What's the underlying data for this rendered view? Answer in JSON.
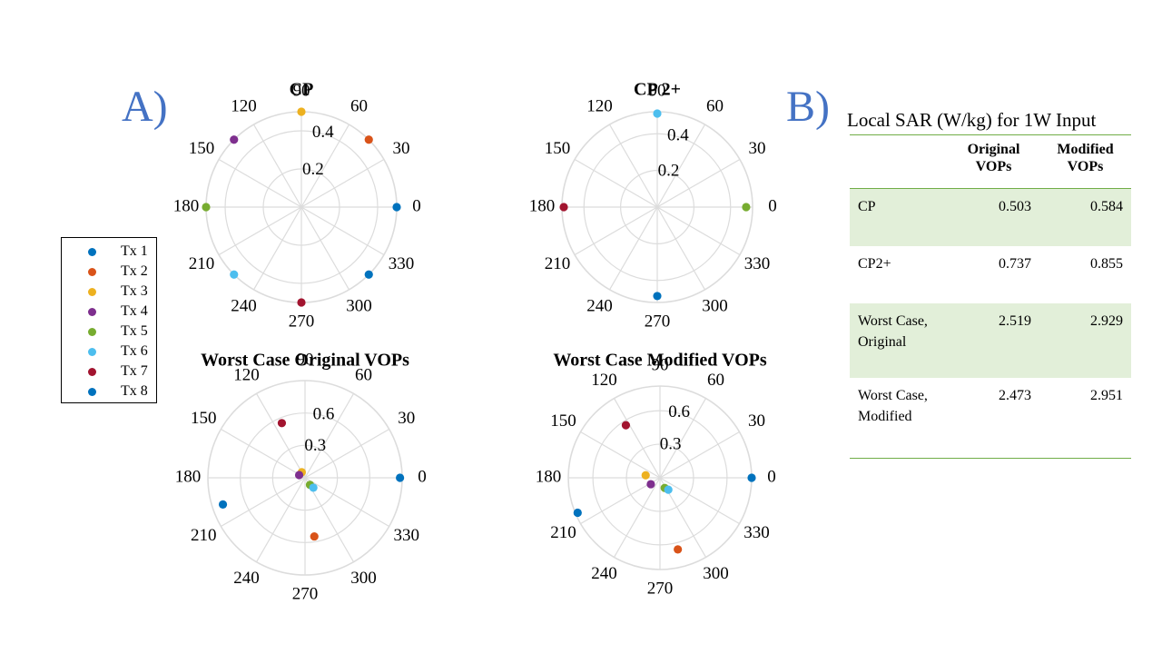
{
  "panel_labels": {
    "a": "A)",
    "b": "B)"
  },
  "colors": {
    "tx1": "#0072bd",
    "tx2": "#d95319",
    "tx3": "#edb120",
    "tx4": "#7e2f8e",
    "tx5": "#77ac30",
    "tx6": "#4dbeee",
    "tx7": "#a2142f",
    "tx8": "#0072bd",
    "grid": "#dcdcdc",
    "table_rule": "#70ad47",
    "table_shade": "#e2efd9",
    "label": "#4472c4"
  },
  "legend": {
    "items": [
      {
        "label": "Tx 1",
        "color": "#0072bd"
      },
      {
        "label": "Tx 2",
        "color": "#d95319"
      },
      {
        "label": "Tx 3",
        "color": "#edb120"
      },
      {
        "label": "Tx 4",
        "color": "#7e2f8e"
      },
      {
        "label": "Tx 5",
        "color": "#77ac30"
      },
      {
        "label": "Tx 6",
        "color": "#4dbeee"
      },
      {
        "label": "Tx 7",
        "color": "#a2142f"
      },
      {
        "label": "Tx 8",
        "color": "#0072bd"
      }
    ]
  },
  "chart_data": [
    {
      "type": "scatter",
      "subtype": "polar",
      "title": "CP",
      "rlim": [
        0,
        0.5
      ],
      "rticks": [
        "0.2",
        "0.4"
      ],
      "theta_ticks": [
        "0",
        "30",
        "60",
        "90",
        "120",
        "150",
        "180",
        "210",
        "240",
        "270",
        "300",
        "330"
      ],
      "points": [
        {
          "series": "Tx 1",
          "theta": 0,
          "r": 0.5
        },
        {
          "series": "Tx 2",
          "theta": 45,
          "r": 0.5
        },
        {
          "series": "Tx 3",
          "theta": 90,
          "r": 0.5
        },
        {
          "series": "Tx 4",
          "theta": 135,
          "r": 0.5
        },
        {
          "series": "Tx 5",
          "theta": 180,
          "r": 0.5
        },
        {
          "series": "Tx 6",
          "theta": 225,
          "r": 0.5
        },
        {
          "series": "Tx 7",
          "theta": 270,
          "r": 0.5
        },
        {
          "series": "Tx 8",
          "theta": 315,
          "r": 0.5
        }
      ]
    },
    {
      "type": "scatter",
      "subtype": "polar",
      "title": "CP 2+",
      "rlim": [
        0,
        0.52
      ],
      "rticks": [
        "0.2",
        "0.4"
      ],
      "theta_ticks": [
        "0",
        "30",
        "60",
        "90",
        "120",
        "150",
        "180",
        "210",
        "240",
        "270",
        "300",
        "330"
      ],
      "points": [
        {
          "series": "Tx 5",
          "theta": 0,
          "r": 0.485
        },
        {
          "series": "Tx 6",
          "theta": 90,
          "r": 0.51
        },
        {
          "series": "Tx 7",
          "theta": 180,
          "r": 0.51
        },
        {
          "series": "Tx 1",
          "theta": 270,
          "r": 0.485
        }
      ]
    },
    {
      "type": "scatter",
      "subtype": "polar",
      "title": "Worst Case Original VOPs",
      "rlim": [
        0,
        0.9
      ],
      "rticks": [
        "0.3",
        "0.6"
      ],
      "theta_ticks": [
        "0",
        "30",
        "60",
        "90",
        "120",
        "150",
        "180",
        "210",
        "240",
        "270",
        "300",
        "330"
      ],
      "points": [
        {
          "series": "Tx 1",
          "theta": 0,
          "r": 0.88
        },
        {
          "series": "Tx 2",
          "theta": 279,
          "r": 0.55
        },
        {
          "series": "Tx 3",
          "theta": 120,
          "r": 0.06
        },
        {
          "series": "Tx 4",
          "theta": 155,
          "r": 0.06
        },
        {
          "series": "Tx 5",
          "theta": 305,
          "r": 0.08
        },
        {
          "series": "Tx 6",
          "theta": 310,
          "r": 0.12
        },
        {
          "series": "Tx 7",
          "theta": 113,
          "r": 0.55
        },
        {
          "series": "Tx 8",
          "theta": 198,
          "r": 0.8
        }
      ]
    },
    {
      "type": "scatter",
      "subtype": "polar",
      "title": "Worst Case Modified VOPs",
      "rlim": [
        0,
        0.82
      ],
      "rticks": [
        "0.3",
        "0.6"
      ],
      "theta_ticks": [
        "0",
        "30",
        "60",
        "90",
        "120",
        "150",
        "180",
        "210",
        "240",
        "270",
        "300",
        "330"
      ],
      "points": [
        {
          "series": "Tx 1",
          "theta": 0,
          "r": 0.82
        },
        {
          "series": "Tx 2",
          "theta": 284,
          "r": 0.66
        },
        {
          "series": "Tx 3",
          "theta": 170,
          "r": 0.13
        },
        {
          "series": "Tx 4",
          "theta": 215,
          "r": 0.1
        },
        {
          "series": "Tx 5",
          "theta": 295,
          "r": 0.1
        },
        {
          "series": "Tx 6",
          "theta": 305,
          "r": 0.13
        },
        {
          "series": "Tx 7",
          "theta": 123,
          "r": 0.56
        },
        {
          "series": "Tx 8",
          "theta": 203,
          "r": 0.8
        }
      ]
    },
    {
      "type": "table",
      "title": "Local SAR (W/kg) for 1W Input",
      "columns": [
        "",
        "Original VOPs",
        "Modified VOPs"
      ],
      "rows": [
        {
          "label": "CP",
          "original": "0.503",
          "modified": "0.584"
        },
        {
          "label": "CP2+",
          "original": "0.737",
          "modified": "0.855"
        },
        {
          "label": "Worst Case, Original",
          "original": "2.519",
          "modified": "2.929"
        },
        {
          "label": "Worst Case, Modified",
          "original": "2.473",
          "modified": "2.951"
        }
      ]
    }
  ],
  "table": {
    "caption": "Local SAR (W/kg) for 1W Input",
    "header_original": "Original VOPs",
    "header_modified": "Modified VOPs",
    "rows": [
      {
        "label": "CP",
        "original": "0.503",
        "modified": "0.584"
      },
      {
        "label": "CP2+",
        "original": "0.737",
        "modified": "0.855"
      },
      {
        "label": "Worst Case, Original",
        "original": "2.519",
        "modified": "2.929"
      },
      {
        "label": "Worst Case, Modified",
        "original": "2.473",
        "modified": "2.951"
      }
    ]
  }
}
